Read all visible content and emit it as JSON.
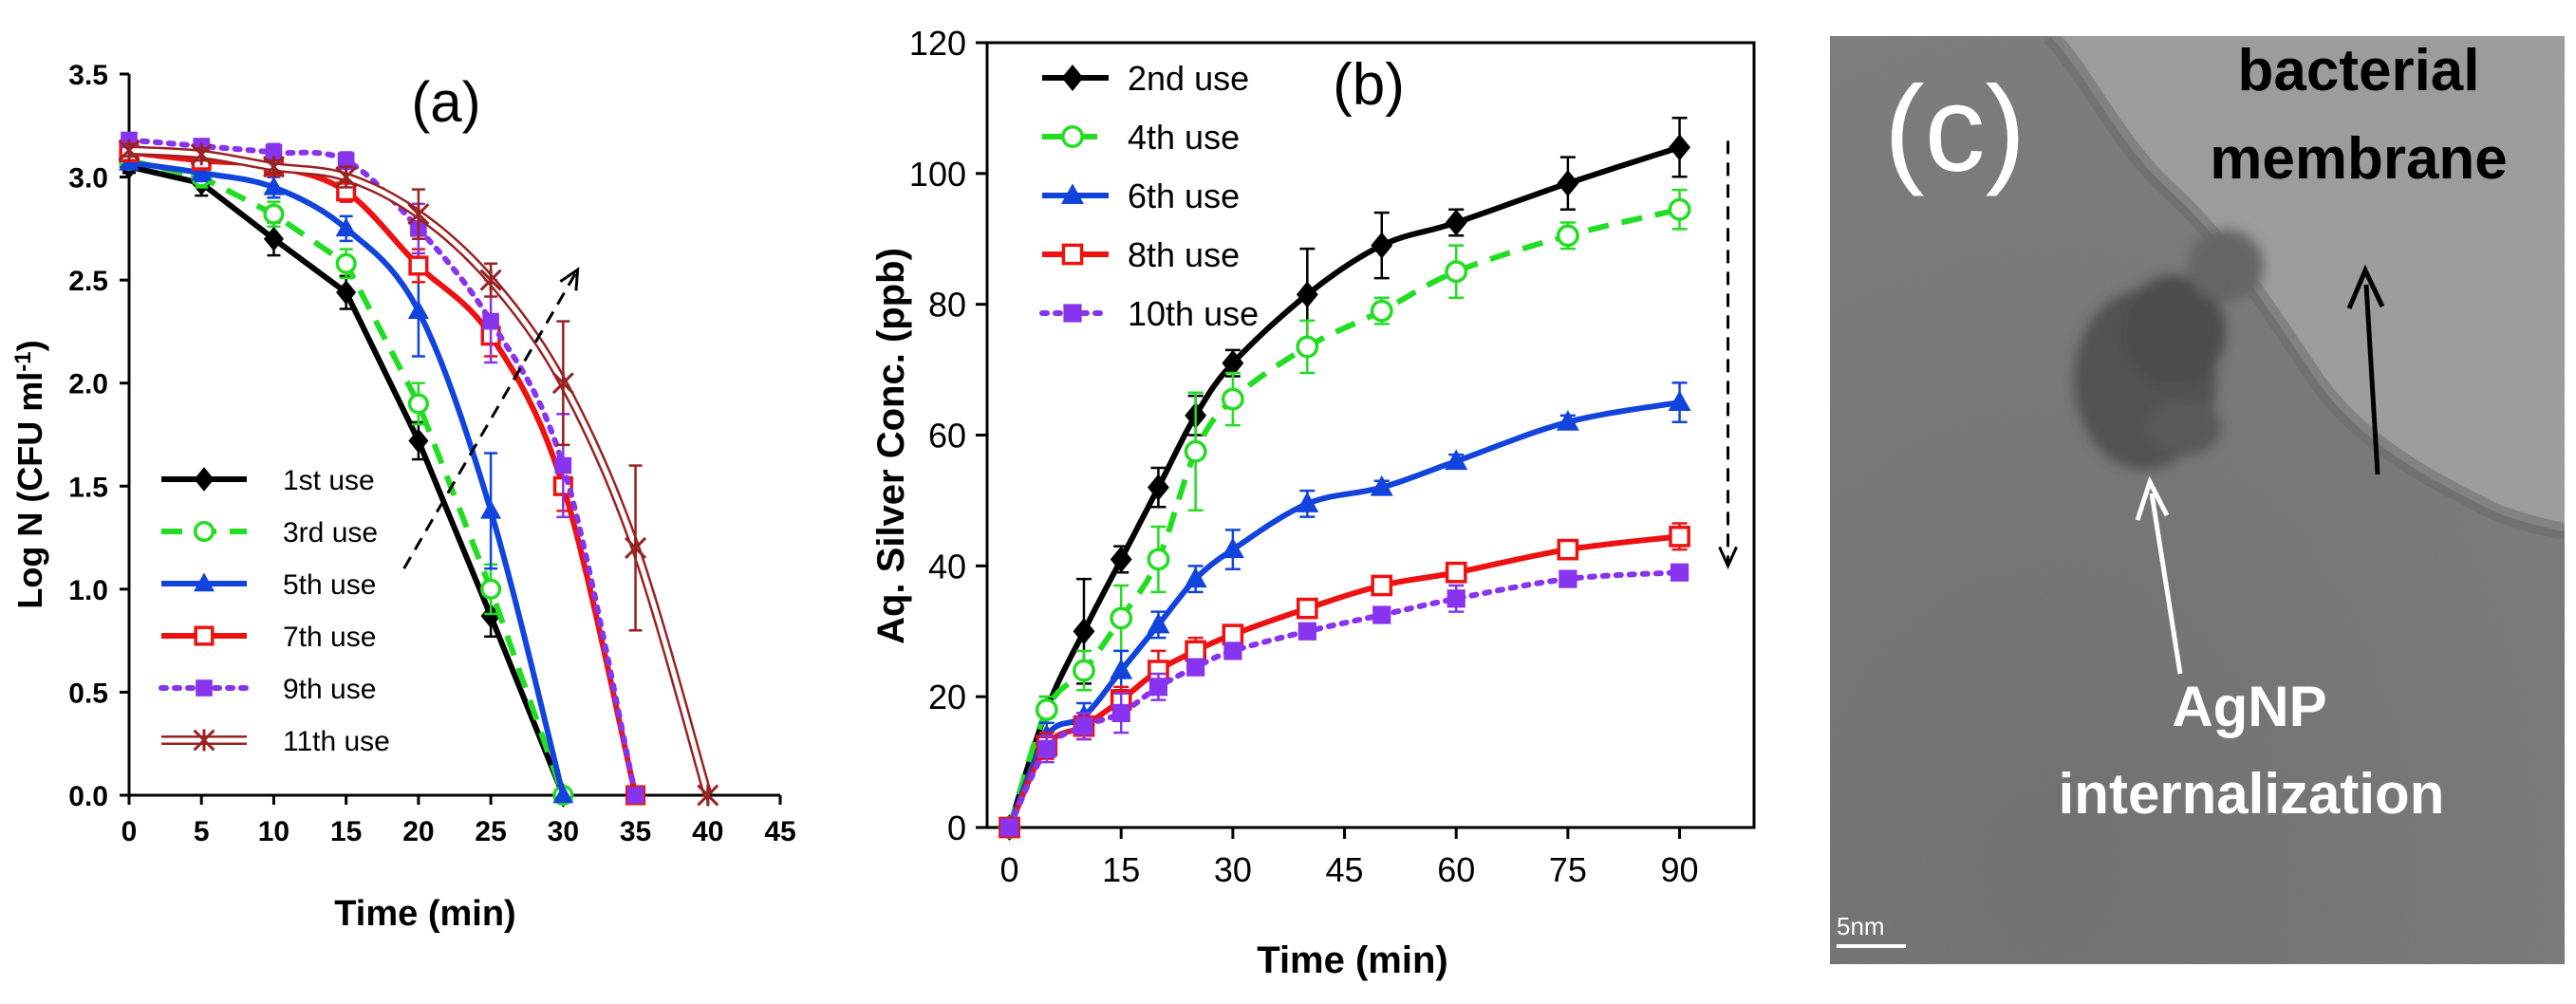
{
  "chart_data": [
    {
      "type": "line",
      "panel_label": "(a)",
      "xlabel": "Time (min)",
      "ylabel_main": "Log N (CFU ml",
      "ylabel_sup": "-1",
      "ylabel_end": ")",
      "xlim": [
        0,
        45
      ],
      "ylim": [
        0,
        3.5
      ],
      "xticks": [
        "0",
        "5",
        "10",
        "15",
        "20",
        "25",
        "30",
        "35",
        "40",
        "45"
      ],
      "yticks": [
        "0.0",
        "0.5",
        "1.0",
        "1.5",
        "2.0",
        "2.5",
        "3.0",
        "3.5"
      ],
      "series": [
        {
          "name": "1st use",
          "color": "#000000",
          "dash": "",
          "marker": "diamond",
          "x": [
            0,
            5,
            10,
            15,
            20,
            25,
            30
          ],
          "y": [
            3.05,
            2.97,
            2.7,
            2.44,
            1.72,
            0.87,
            0.0
          ],
          "err": [
            0.03,
            0.06,
            0.08,
            0.08,
            0.09,
            0.1,
            0.0
          ]
        },
        {
          "name": "3rd use",
          "color": "#22dd22",
          "dash": "22,14",
          "marker": "circle-open",
          "x": [
            0,
            5,
            10,
            15,
            20,
            25,
            30
          ],
          "y": [
            3.08,
            3.0,
            2.82,
            2.58,
            1.9,
            1.0,
            0.0
          ],
          "err": [
            0.03,
            0.05,
            0.06,
            0.07,
            0.1,
            0.12,
            0.0
          ]
        },
        {
          "name": "5th use",
          "color": "#1144dd",
          "dash": "",
          "marker": "triangle",
          "x": [
            0,
            5,
            10,
            15,
            20,
            25,
            30
          ],
          "y": [
            3.07,
            3.02,
            2.95,
            2.75,
            2.35,
            1.38,
            0.0
          ],
          "err": [
            0.03,
            0.04,
            0.05,
            0.06,
            0.22,
            0.28,
            0.0
          ]
        },
        {
          "name": "7th use",
          "color": "#ee1111",
          "dash": "",
          "marker": "square-open",
          "x": [
            0,
            5,
            10,
            15,
            20,
            25,
            30,
            35
          ],
          "y": [
            3.12,
            3.08,
            3.05,
            2.93,
            2.57,
            2.23,
            1.5,
            0.0
          ],
          "err": [
            0.03,
            0.04,
            0.04,
            0.05,
            0.08,
            0.1,
            0.12,
            0.0
          ]
        },
        {
          "name": "9th use",
          "color": "#8833ee",
          "dash": "5,9",
          "marker": "square",
          "x": [
            0,
            5,
            10,
            15,
            20,
            25,
            30,
            35
          ],
          "y": [
            3.18,
            3.15,
            3.12,
            3.08,
            2.75,
            2.3,
            1.6,
            0.0
          ],
          "err": [
            0.03,
            0.03,
            0.04,
            0.04,
            0.12,
            0.2,
            0.25,
            0.0
          ]
        },
        {
          "name": "11th use",
          "color": "#992222",
          "dash": "double",
          "marker": "asterisk",
          "x": [
            0,
            5,
            10,
            15,
            20,
            25,
            30,
            35,
            40
          ],
          "y": [
            3.13,
            3.11,
            3.05,
            3.0,
            2.82,
            2.5,
            2.0,
            1.2,
            0.0
          ],
          "err": [
            0.03,
            0.03,
            0.03,
            0.05,
            0.12,
            0.08,
            0.3,
            0.4,
            0.0
          ]
        }
      ],
      "trend_arrow": {
        "from": [
          19,
          1.1
        ],
        "to": [
          31,
          2.55
        ]
      }
    },
    {
      "type": "line",
      "panel_label": "(b)",
      "xlabel": "Time (min)",
      "ylabel": "Aq. Silver Conc. (ppb)",
      "xlim": [
        -3,
        100
      ],
      "ylim": [
        0,
        120
      ],
      "xticks": [
        "0",
        "15",
        "30",
        "45",
        "60",
        "75",
        "90"
      ],
      "yticks": [
        "0",
        "20",
        "40",
        "60",
        "80",
        "100",
        "120"
      ],
      "series": [
        {
          "name": "2nd use",
          "color": "#000000",
          "dash": "",
          "marker": "diamond",
          "x": [
            0,
            5,
            10,
            15,
            20,
            25,
            30,
            40,
            50,
            60,
            75,
            90
          ],
          "y": [
            0,
            18,
            30,
            41,
            52,
            63,
            71,
            81.5,
            89,
            92.5,
            98.5,
            104
          ],
          "err": [
            0,
            2,
            8,
            2,
            3,
            3,
            2,
            7,
            5,
            2,
            4,
            4.5
          ]
        },
        {
          "name": "4th use",
          "color": "#22dd22",
          "dash": "22,14",
          "marker": "circle-open",
          "x": [
            0,
            5,
            10,
            15,
            20,
            25,
            30,
            40,
            50,
            60,
            75,
            90
          ],
          "y": [
            0,
            18,
            24,
            32,
            41,
            57.5,
            65.5,
            73.5,
            79,
            85,
            90.5,
            94.5
          ],
          "err": [
            0,
            2,
            3,
            5,
            5,
            9,
            4,
            4,
            2,
            4,
            2,
            3
          ]
        },
        {
          "name": "6th use",
          "color": "#1144dd",
          "dash": "",
          "marker": "triangle",
          "x": [
            0,
            5,
            10,
            15,
            20,
            25,
            30,
            40,
            50,
            60,
            75,
            90
          ],
          "y": [
            0,
            14,
            17,
            24,
            31,
            38,
            42.5,
            49.5,
            52,
            56,
            62,
            65
          ],
          "err": [
            0,
            2,
            2,
            3,
            2,
            2,
            3,
            2,
            1,
            1,
            1,
            3
          ]
        },
        {
          "name": "8th use",
          "color": "#ee1111",
          "dash": "",
          "marker": "square-open",
          "x": [
            0,
            5,
            10,
            15,
            20,
            25,
            30,
            40,
            50,
            60,
            75,
            90
          ],
          "y": [
            0,
            12.5,
            15.5,
            19.5,
            24,
            27,
            29.5,
            33.5,
            37,
            39,
            42.5,
            44.5
          ],
          "err": [
            0,
            2,
            2,
            2,
            3,
            2,
            1,
            1,
            1,
            1,
            1,
            2
          ]
        },
        {
          "name": "10th use",
          "color": "#8833ee",
          "dash": "5,9",
          "marker": "square",
          "x": [
            0,
            5,
            10,
            15,
            20,
            25,
            30,
            40,
            50,
            60,
            75,
            90
          ],
          "y": [
            0,
            12,
            15.5,
            17.5,
            21.5,
            24.5,
            27,
            30,
            32.5,
            35,
            38,
            39
          ],
          "err": [
            0,
            2,
            2,
            3,
            2,
            1,
            1,
            1,
            1,
            2,
            1,
            1
          ]
        }
      ],
      "trend_arrow": {
        "from": [
          96.5,
          105
        ],
        "to": [
          96.5,
          40
        ]
      }
    }
  ],
  "panel_c": {
    "label": "(c)",
    "text_membrane_1": "bacterial",
    "text_membrane_2": "membrane",
    "text_agnp_1": "AgNP",
    "text_agnp_2": "internalization",
    "scale_bar": "5nm"
  }
}
